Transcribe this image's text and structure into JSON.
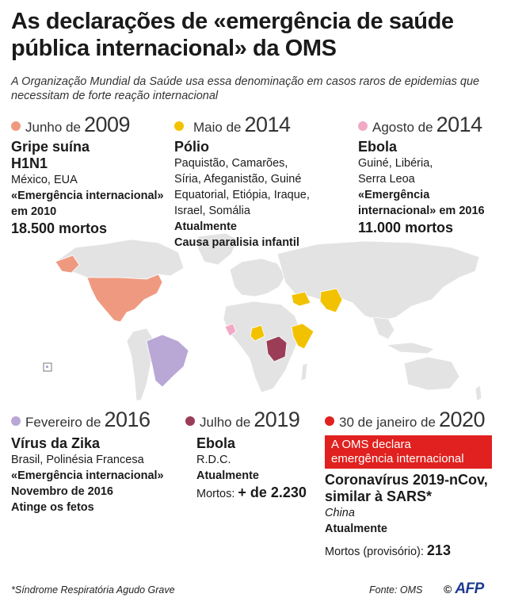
{
  "title": "As declarações de «emergência de saúde pública internacional»  da OMS",
  "subtitle": "A Organização Mundial da Saúde usa essa denominação em casos  raros de epidemias que necessitam de forte reação internacional",
  "colors": {
    "h1n1": "#ef9a80",
    "polio": "#f2c200",
    "ebola2014": "#f2a9c6",
    "zika": "#b9a7d6",
    "ebola2019": "#9c3d57",
    "covid": "#e0211f",
    "land": "#e3e3e3"
  },
  "events": {
    "h1n1": {
      "month": "Junho de",
      "year": "2009",
      "disease": "Gripe suína",
      "disease2": "H1N1",
      "countries": "México, EUA",
      "l1": "«Emergência internacional»",
      "l2": "em 2010",
      "deaths": "18.500 mortos"
    },
    "polio": {
      "month": "Maio de",
      "year": "2014",
      "disease": "Pólio",
      "countries": [
        "Paquistão, Camarões,",
        "Síria, Afeganistão, Guiné",
        "Equatorial, Etiópia, Iraque,",
        "Israel,  Somália"
      ],
      "status": "Atualmente",
      "note": "Causa paralisia infantil"
    },
    "ebola2014": {
      "month": "Agosto de",
      "year": "2014",
      "disease": "Ebola",
      "countries": [
        "Guiné, Libéria,",
        "Serra Leoa"
      ],
      "l1": "«Emergência",
      "l2": "internacional» em 2016",
      "deaths": "11.000 mortos"
    },
    "zika": {
      "month": "Fevereiro de",
      "year": "2016",
      "disease": "Vírus da Zika",
      "countries": "Brasil, Polinésia Francesa",
      "l1": "«Emergência internacional»",
      "l2": "Novembro de 2016",
      "note": "Atinge os fetos"
    },
    "ebola2019": {
      "month": "Julho de",
      "year": "2019",
      "disease": "Ebola",
      "countries": "R.D.C.",
      "status": "Atualmente",
      "deaths_label": "Mortos:",
      "deaths": "+ de 2.230"
    },
    "covid": {
      "month": "30 de janeiro de",
      "year": "2020",
      "banner": [
        "A OMS declara",
        "emergência internacional"
      ],
      "disease": [
        "Coronavírus 2019-nCov,",
        "similar à SARS*"
      ],
      "country": "China",
      "status": "Atualmente",
      "deaths_label": "Mortos (provisório):",
      "deaths": "213"
    }
  },
  "footnote": "*Síndrome Respiratória Agudo Grave",
  "source": "Fonte: OMS",
  "agency": "AFP"
}
